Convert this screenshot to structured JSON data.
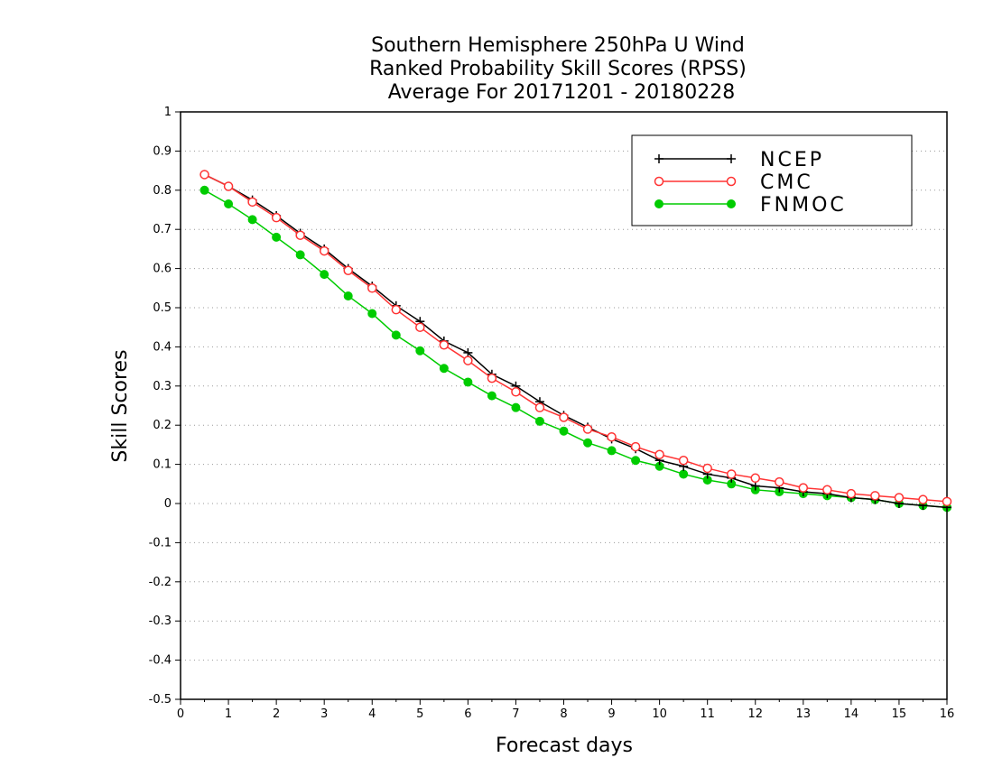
{
  "chart_data": {
    "type": "line",
    "title": [
      "Southern Hemisphere 250hPa U Wind",
      "Ranked Probability Skill Scores (RPSS)",
      "Average For 20171201 - 20180228"
    ],
    "xlabel": "Forecast days",
    "ylabel": "Skill Scores",
    "xlim": [
      0,
      16
    ],
    "ylim": [
      -0.5,
      1
    ],
    "xticks": [
      0,
      1,
      2,
      3,
      4,
      5,
      6,
      7,
      8,
      9,
      10,
      11,
      12,
      13,
      14,
      15,
      16
    ],
    "yticks": [
      -0.5,
      -0.4,
      -0.3,
      -0.2,
      -0.1,
      0,
      0.1,
      0.2,
      0.3,
      0.4,
      0.5,
      0.6,
      0.7,
      0.8,
      0.9,
      1
    ],
    "ytick_labels": [
      "-0.5",
      "-0.4",
      "-0.3",
      "-0.2",
      "-0.1",
      "0",
      "0.1",
      "0.2",
      "0.3",
      "0.4",
      "0.5",
      "0.6",
      "0.7",
      "0.8",
      "0.9",
      "1"
    ],
    "grid": "horizontal dotted",
    "legend_position": "top-right",
    "x": [
      0.5,
      1.0,
      1.5,
      2.0,
      2.5,
      3.0,
      3.5,
      4.0,
      4.5,
      5.0,
      5.5,
      6.0,
      6.5,
      7.0,
      7.5,
      8.0,
      8.5,
      9.0,
      9.5,
      10.0,
      10.5,
      11.0,
      11.5,
      12.0,
      12.5,
      13.0,
      13.5,
      14.0,
      14.5,
      15.0,
      15.5,
      16.0
    ],
    "series": [
      {
        "name": "NCEP",
        "color": "#000000",
        "marker": "plus",
        "values": [
          0.84,
          0.81,
          0.775,
          0.735,
          0.69,
          0.65,
          0.6,
          0.555,
          0.505,
          0.465,
          0.415,
          0.385,
          0.33,
          0.3,
          0.26,
          0.225,
          0.195,
          0.165,
          0.14,
          0.11,
          0.095,
          0.075,
          0.065,
          0.045,
          0.04,
          0.03,
          0.025,
          0.015,
          0.01,
          0.0,
          -0.005,
          -0.01
        ]
      },
      {
        "name": "CMC",
        "color": "#ff3333",
        "marker": "open-circle",
        "values": [
          0.84,
          0.81,
          0.77,
          0.73,
          0.685,
          0.645,
          0.595,
          0.55,
          0.495,
          0.45,
          0.405,
          0.365,
          0.32,
          0.285,
          0.245,
          0.22,
          0.19,
          0.17,
          0.145,
          0.125,
          0.11,
          0.09,
          0.075,
          0.065,
          0.055,
          0.04,
          0.035,
          0.025,
          0.02,
          0.015,
          0.01,
          0.005
        ]
      },
      {
        "name": "FNMOC",
        "color": "#00cc00",
        "marker": "filled-circle",
        "values": [
          0.8,
          0.765,
          0.725,
          0.68,
          0.635,
          0.585,
          0.53,
          0.485,
          0.43,
          0.39,
          0.345,
          0.31,
          0.275,
          0.245,
          0.21,
          0.185,
          0.155,
          0.135,
          0.11,
          0.095,
          0.075,
          0.06,
          0.05,
          0.035,
          0.03,
          0.025,
          0.02,
          0.015,
          0.01,
          0.0,
          -0.005,
          -0.01
        ]
      }
    ]
  }
}
